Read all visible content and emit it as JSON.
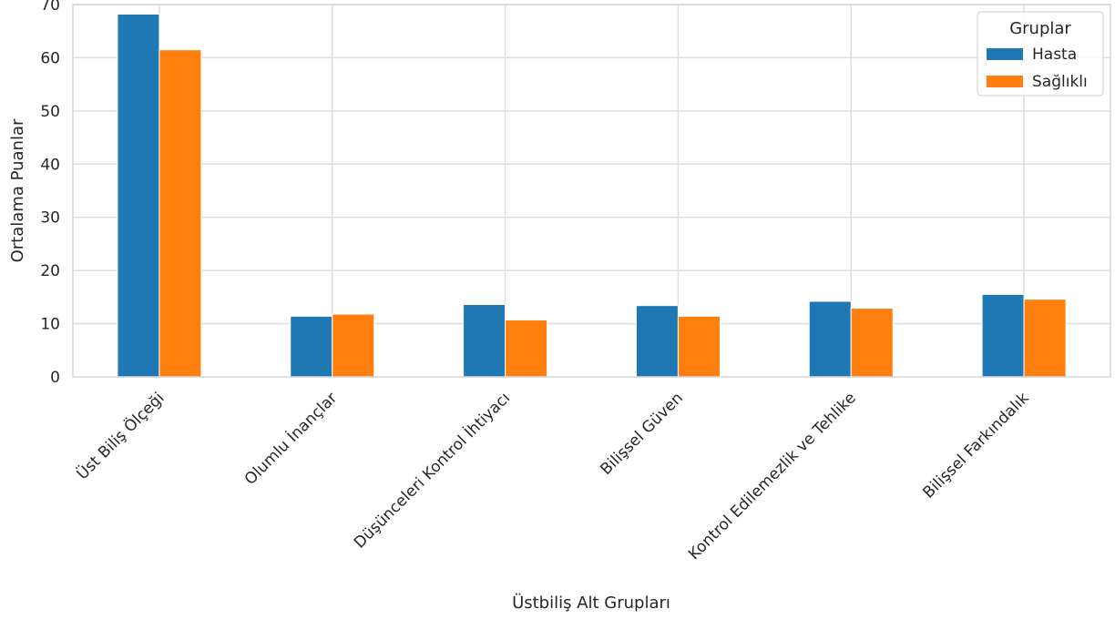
{
  "chart_data": {
    "type": "bar",
    "title": "",
    "xlabel": "Üstbiliş Alt Grupları",
    "ylabel": "Ortalama Puanlar",
    "ylim": [
      0,
      70
    ],
    "yticks": [
      0,
      10,
      20,
      30,
      40,
      50,
      60,
      70
    ],
    "categories": [
      "Üst Biliş Ölçeği",
      "Olumlu İnançlar",
      "Düşünceleri Kontrol İhtiyacı",
      "Bilişsel Güven",
      "Kontrol Edilemezlik ve Tehlike",
      "Bilişsel Farkındalık"
    ],
    "series": [
      {
        "name": "Hasta",
        "color": "#1f77b4",
        "values": [
          68.2,
          11.4,
          13.6,
          13.4,
          14.2,
          15.5
        ]
      },
      {
        "name": "Sağlıklı",
        "color": "#ff7f0e",
        "values": [
          61.5,
          11.8,
          10.7,
          11.4,
          12.9,
          14.6
        ]
      }
    ],
    "legend": {
      "title": "Gruplar",
      "placement": "top-right"
    },
    "grid": true
  }
}
